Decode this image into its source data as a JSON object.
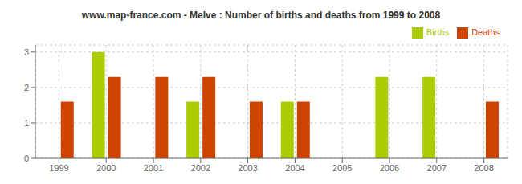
{
  "chart_data": {
    "type": "bar",
    "title": "www.map-france.com - Melve : Number of births and deaths from 1999 to 2008",
    "categories": [
      1999,
      2000,
      2001,
      2002,
      2003,
      2004,
      2005,
      2006,
      2007,
      2008
    ],
    "series": [
      {
        "name": "Births",
        "color": "#aacc00",
        "values": [
          0,
          3,
          0,
          1.6,
          0,
          1.6,
          0,
          2.3,
          2.3,
          0
        ]
      },
      {
        "name": "Deaths",
        "color": "#cc4400",
        "values": [
          1.6,
          2.3,
          2.3,
          2.3,
          1.6,
          1.6,
          0,
          0,
          0,
          1.6
        ]
      }
    ],
    "ylim": [
      0,
      3.2
    ],
    "yticks": [
      0,
      1,
      2,
      3
    ],
    "grid": true,
    "legend": "upper right"
  }
}
